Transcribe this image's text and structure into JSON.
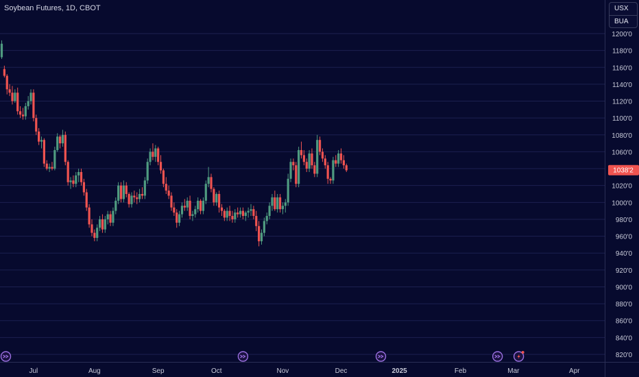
{
  "header": {
    "title": "Soybean Futures, 1D, CBOT"
  },
  "units": {
    "currency": "USX",
    "unit": "BUA"
  },
  "price_label": {
    "text": "1038'2",
    "value": 1038.25,
    "color": "#f05450"
  },
  "colors": {
    "background": "#070a2e",
    "grid": "#1c2050",
    "up": "#4f9b80",
    "down": "#ef5350",
    "axis_text": "#c8cad8",
    "event_icon": "#9a6fe0"
  },
  "events": [
    {
      "icon": "dividend-forward-icon",
      "t": 0
    },
    {
      "icon": "dividend-forward-icon",
      "t": 91
    },
    {
      "icon": "dividend-forward-icon",
      "t": 143
    },
    {
      "icon": "dividend-forward-icon",
      "t": 187
    },
    {
      "icon": "flash-icon",
      "t": 195
    }
  ],
  "chart_data": {
    "type": "candlestick",
    "title": "Soybean Futures, 1D, CBOT",
    "xlabel": "",
    "ylabel": "",
    "ylim": [
      810,
      1220
    ],
    "grid": true,
    "yticks": [
      820,
      840,
      860,
      880,
      900,
      920,
      940,
      960,
      980,
      1000,
      1020,
      1040,
      1060,
      1080,
      1100,
      1120,
      1140,
      1160,
      1180,
      1200
    ],
    "yticks_labels": [
      "820'0",
      "840'0",
      "860'0",
      "880'0",
      "900'0",
      "920'0",
      "940'0",
      "960'0",
      "980'0",
      "1000'0",
      "1020'0",
      "1040'0",
      "1060'0",
      "1080'0",
      "1100'0",
      "1120'0",
      "1140'0",
      "1160'0",
      "1180'0",
      "1200'0"
    ],
    "xticks": [
      {
        "label": "Jul",
        "t": 12
      },
      {
        "label": "Aug",
        "t": 35
      },
      {
        "label": "Sep",
        "t": 59
      },
      {
        "label": "Oct",
        "t": 81
      },
      {
        "label": "Nov",
        "t": 106
      },
      {
        "label": "Dec",
        "t": 128
      },
      {
        "label": "2025",
        "t": 150
      },
      {
        "label": "Feb",
        "t": 173
      },
      {
        "label": "Mar",
        "t": 193
      },
      {
        "label": "Apr",
        "t": 216
      }
    ],
    "xlim": [
      -1,
      226
    ],
    "ohlc": [
      [
        1172,
        1192,
        1170,
        1188
      ],
      [
        1158,
        1162,
        1148,
        1150
      ],
      [
        1150,
        1152,
        1128,
        1134
      ],
      [
        1134,
        1140,
        1126,
        1130
      ],
      [
        1130,
        1138,
        1116,
        1120
      ],
      [
        1120,
        1134,
        1118,
        1130
      ],
      [
        1130,
        1136,
        1104,
        1108
      ],
      [
        1108,
        1114,
        1100,
        1104
      ],
      [
        1104,
        1112,
        1098,
        1102
      ],
      [
        1102,
        1118,
        1098,
        1114
      ],
      [
        1114,
        1126,
        1110,
        1120
      ],
      [
        1120,
        1134,
        1116,
        1130
      ],
      [
        1130,
        1134,
        1096,
        1100
      ],
      [
        1100,
        1104,
        1080,
        1084
      ],
      [
        1084,
        1088,
        1068,
        1072
      ],
      [
        1072,
        1078,
        1064,
        1074
      ],
      [
        1074,
        1076,
        1042,
        1046
      ],
      [
        1046,
        1050,
        1038,
        1040
      ],
      [
        1040,
        1046,
        1036,
        1042
      ],
      [
        1042,
        1048,
        1038,
        1040
      ],
      [
        1040,
        1066,
        1038,
        1062
      ],
      [
        1062,
        1082,
        1060,
        1078
      ],
      [
        1078,
        1080,
        1064,
        1070
      ],
      [
        1070,
        1086,
        1066,
        1080
      ],
      [
        1080,
        1084,
        1044,
        1048
      ],
      [
        1048,
        1050,
        1020,
        1024
      ],
      [
        1024,
        1030,
        1016,
        1026
      ],
      [
        1026,
        1032,
        1018,
        1022
      ],
      [
        1022,
        1036,
        1018,
        1032
      ],
      [
        1032,
        1040,
        1024,
        1036
      ],
      [
        1036,
        1040,
        1020,
        1024
      ],
      [
        1024,
        1028,
        1008,
        1012
      ],
      [
        1012,
        1016,
        990,
        994
      ],
      [
        994,
        998,
        970,
        974
      ],
      [
        974,
        980,
        960,
        964
      ],
      [
        964,
        968,
        954,
        958
      ],
      [
        958,
        974,
        954,
        970
      ],
      [
        970,
        984,
        966,
        980
      ],
      [
        980,
        986,
        964,
        968
      ],
      [
        968,
        984,
        964,
        980
      ],
      [
        980,
        990,
        974,
        986
      ],
      [
        986,
        990,
        972,
        976
      ],
      [
        976,
        994,
        972,
        990
      ],
      [
        990,
        1006,
        986,
        1002
      ],
      [
        1002,
        1024,
        998,
        1020
      ],
      [
        1020,
        1024,
        1000,
        1004
      ],
      [
        1004,
        1026,
        1000,
        1020
      ],
      [
        1020,
        1024,
        1006,
        1010
      ],
      [
        1010,
        1012,
        994,
        998
      ],
      [
        998,
        1012,
        994,
        1008
      ],
      [
        1008,
        1014,
        1000,
        1006
      ],
      [
        1006,
        1012,
        998,
        1004
      ],
      [
        1004,
        1016,
        1000,
        1010
      ],
      [
        1010,
        1018,
        1004,
        1008
      ],
      [
        1008,
        1030,
        1004,
        1026
      ],
      [
        1026,
        1052,
        1022,
        1048
      ],
      [
        1048,
        1064,
        1044,
        1060
      ],
      [
        1060,
        1070,
        1050,
        1054
      ],
      [
        1054,
        1068,
        1048,
        1064
      ],
      [
        1064,
        1066,
        1044,
        1048
      ],
      [
        1048,
        1056,
        1034,
        1038
      ],
      [
        1038,
        1040,
        1018,
        1022
      ],
      [
        1022,
        1030,
        1010,
        1014
      ],
      [
        1014,
        1020,
        1004,
        1008
      ],
      [
        1008,
        1012,
        990,
        994
      ],
      [
        994,
        1000,
        984,
        988
      ],
      [
        988,
        992,
        970,
        976
      ],
      [
        976,
        990,
        972,
        986
      ],
      [
        986,
        1000,
        982,
        996
      ],
      [
        996,
        1004,
        990,
        994
      ],
      [
        994,
        1006,
        990,
        1002
      ],
      [
        1002,
        1008,
        980,
        984
      ],
      [
        984,
        990,
        978,
        986
      ],
      [
        986,
        996,
        982,
        992
      ],
      [
        992,
        1006,
        988,
        1002
      ],
      [
        1002,
        1004,
        986,
        990
      ],
      [
        990,
        1006,
        986,
        1002
      ],
      [
        1002,
        1026,
        998,
        1022
      ],
      [
        1022,
        1042,
        1018,
        1030
      ],
      [
        1030,
        1034,
        1012,
        1016
      ],
      [
        1016,
        1018,
        996,
        1000
      ],
      [
        1000,
        1012,
        996,
        1010
      ],
      [
        1010,
        1014,
        988,
        994
      ],
      [
        994,
        998,
        984,
        990
      ],
      [
        990,
        992,
        978,
        982
      ],
      [
        982,
        994,
        978,
        990
      ],
      [
        990,
        996,
        978,
        984
      ],
      [
        984,
        990,
        976,
        980
      ],
      [
        980,
        992,
        976,
        988
      ],
      [
        988,
        994,
        982,
        986
      ],
      [
        986,
        994,
        982,
        990
      ],
      [
        990,
        994,
        980,
        984
      ],
      [
        984,
        990,
        978,
        988
      ],
      [
        988,
        994,
        982,
        990
      ],
      [
        990,
        998,
        984,
        992
      ],
      [
        992,
        996,
        980,
        984
      ],
      [
        984,
        990,
        966,
        972
      ],
      [
        972,
        978,
        948,
        954
      ],
      [
        954,
        968,
        950,
        964
      ],
      [
        964,
        982,
        960,
        978
      ],
      [
        978,
        988,
        974,
        984
      ],
      [
        984,
        1000,
        980,
        996
      ],
      [
        996,
        1010,
        990,
        1006
      ],
      [
        1006,
        1014,
        990,
        992
      ],
      [
        992,
        1010,
        988,
        1006
      ],
      [
        1006,
        1010,
        988,
        992
      ],
      [
        992,
        1000,
        986,
        996
      ],
      [
        996,
        1004,
        988,
        1000
      ],
      [
        1000,
        1034,
        996,
        1028
      ],
      [
        1028,
        1052,
        1024,
        1048
      ],
      [
        1048,
        1052,
        1038,
        1044
      ],
      [
        1044,
        1048,
        1018,
        1022
      ],
      [
        1022,
        1066,
        1018,
        1062
      ],
      [
        1062,
        1072,
        1052,
        1056
      ],
      [
        1056,
        1062,
        1044,
        1048
      ],
      [
        1048,
        1052,
        1036,
        1040
      ],
      [
        1040,
        1062,
        1036,
        1058
      ],
      [
        1058,
        1064,
        1040,
        1044
      ],
      [
        1044,
        1048,
        1030,
        1034
      ],
      [
        1034,
        1080,
        1030,
        1074
      ],
      [
        1074,
        1078,
        1056,
        1060
      ],
      [
        1060,
        1064,
        1048,
        1052
      ],
      [
        1052,
        1056,
        1040,
        1044
      ],
      [
        1044,
        1048,
        1022,
        1028
      ],
      [
        1028,
        1030,
        1022,
        1026
      ],
      [
        1026,
        1054,
        1022,
        1050
      ],
      [
        1050,
        1056,
        1042,
        1046
      ],
      [
        1046,
        1062,
        1042,
        1058
      ],
      [
        1058,
        1064,
        1046,
        1050
      ],
      [
        1050,
        1056,
        1040,
        1044
      ],
      [
        1044,
        1046,
        1036,
        1038
      ]
    ]
  }
}
